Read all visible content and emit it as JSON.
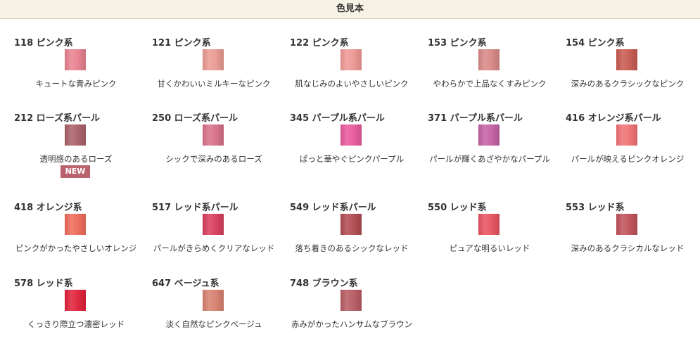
{
  "header": {
    "title": "色見本"
  },
  "items": [
    {
      "label": "118 ピンク系",
      "description": "キュートな青みピンク",
      "color": "#e8808f"
    },
    {
      "label": "121 ピンク系",
      "description": "甘くかわいいミルキーなピンク",
      "color": "#e99a91"
    },
    {
      "label": "122 ピンク系",
      "description": "肌なじみのよいやさしいピンク",
      "color": "#ef9794"
    },
    {
      "label": "153 ピンク系",
      "description": "やわらかで上品なくすみピンク",
      "color": "#d88886"
    },
    {
      "label": "154 ピンク系",
      "description": "深みのあるクラシックなピンク",
      "color": "#c85a50"
    },
    {
      "label": "212 ローズ系パール",
      "description": "透明感のあるローズ",
      "color": "#a96068",
      "badge": "NEW"
    },
    {
      "label": "250 ローズ系パール",
      "description": "シックで深みのあるローズ",
      "color": "#d87089"
    },
    {
      "label": "345 パープル系パール",
      "description": "ぱっと華やぐピンクパープル",
      "color": "#e8589c"
    },
    {
      "label": "371 パープル系パール",
      "description": "パールが輝くあざやかなパープル",
      "color": "#c460a4"
    },
    {
      "label": "416 オレンジ系パール",
      "description": "パールが映えるピンクオレンジ",
      "color": "#f07274"
    },
    {
      "label": "418 オレンジ系",
      "description": "ピンクがかったやさしいオレンジ",
      "color": "#ee6a5a"
    },
    {
      "label": "517 レッド系パール",
      "description": "パールがきらめくクリアなレッド",
      "color": "#d83c5c"
    },
    {
      "label": "549 レッド系パール",
      "description": "落ち着きのあるシックなレッド",
      "color": "#b04a50"
    },
    {
      "label": "550 レッド系",
      "description": "ピュアな明るいレッド",
      "color": "#e8525f"
    },
    {
      "label": "553 レッド系",
      "description": "深みのあるクラシカルなレッド",
      "color": "#c05058"
    },
    {
      "label": "578 レッド系",
      "description": "くっきり際立つ濃密レッド",
      "color": "#e02038"
    },
    {
      "label": "647 ベージュ系",
      "description": "淡く自然なピンクベージュ",
      "color": "#d8806e"
    },
    {
      "label": "748 ブラウン系",
      "description": "赤みがかったハンサムなブラウン",
      "color": "#b85a62"
    }
  ]
}
